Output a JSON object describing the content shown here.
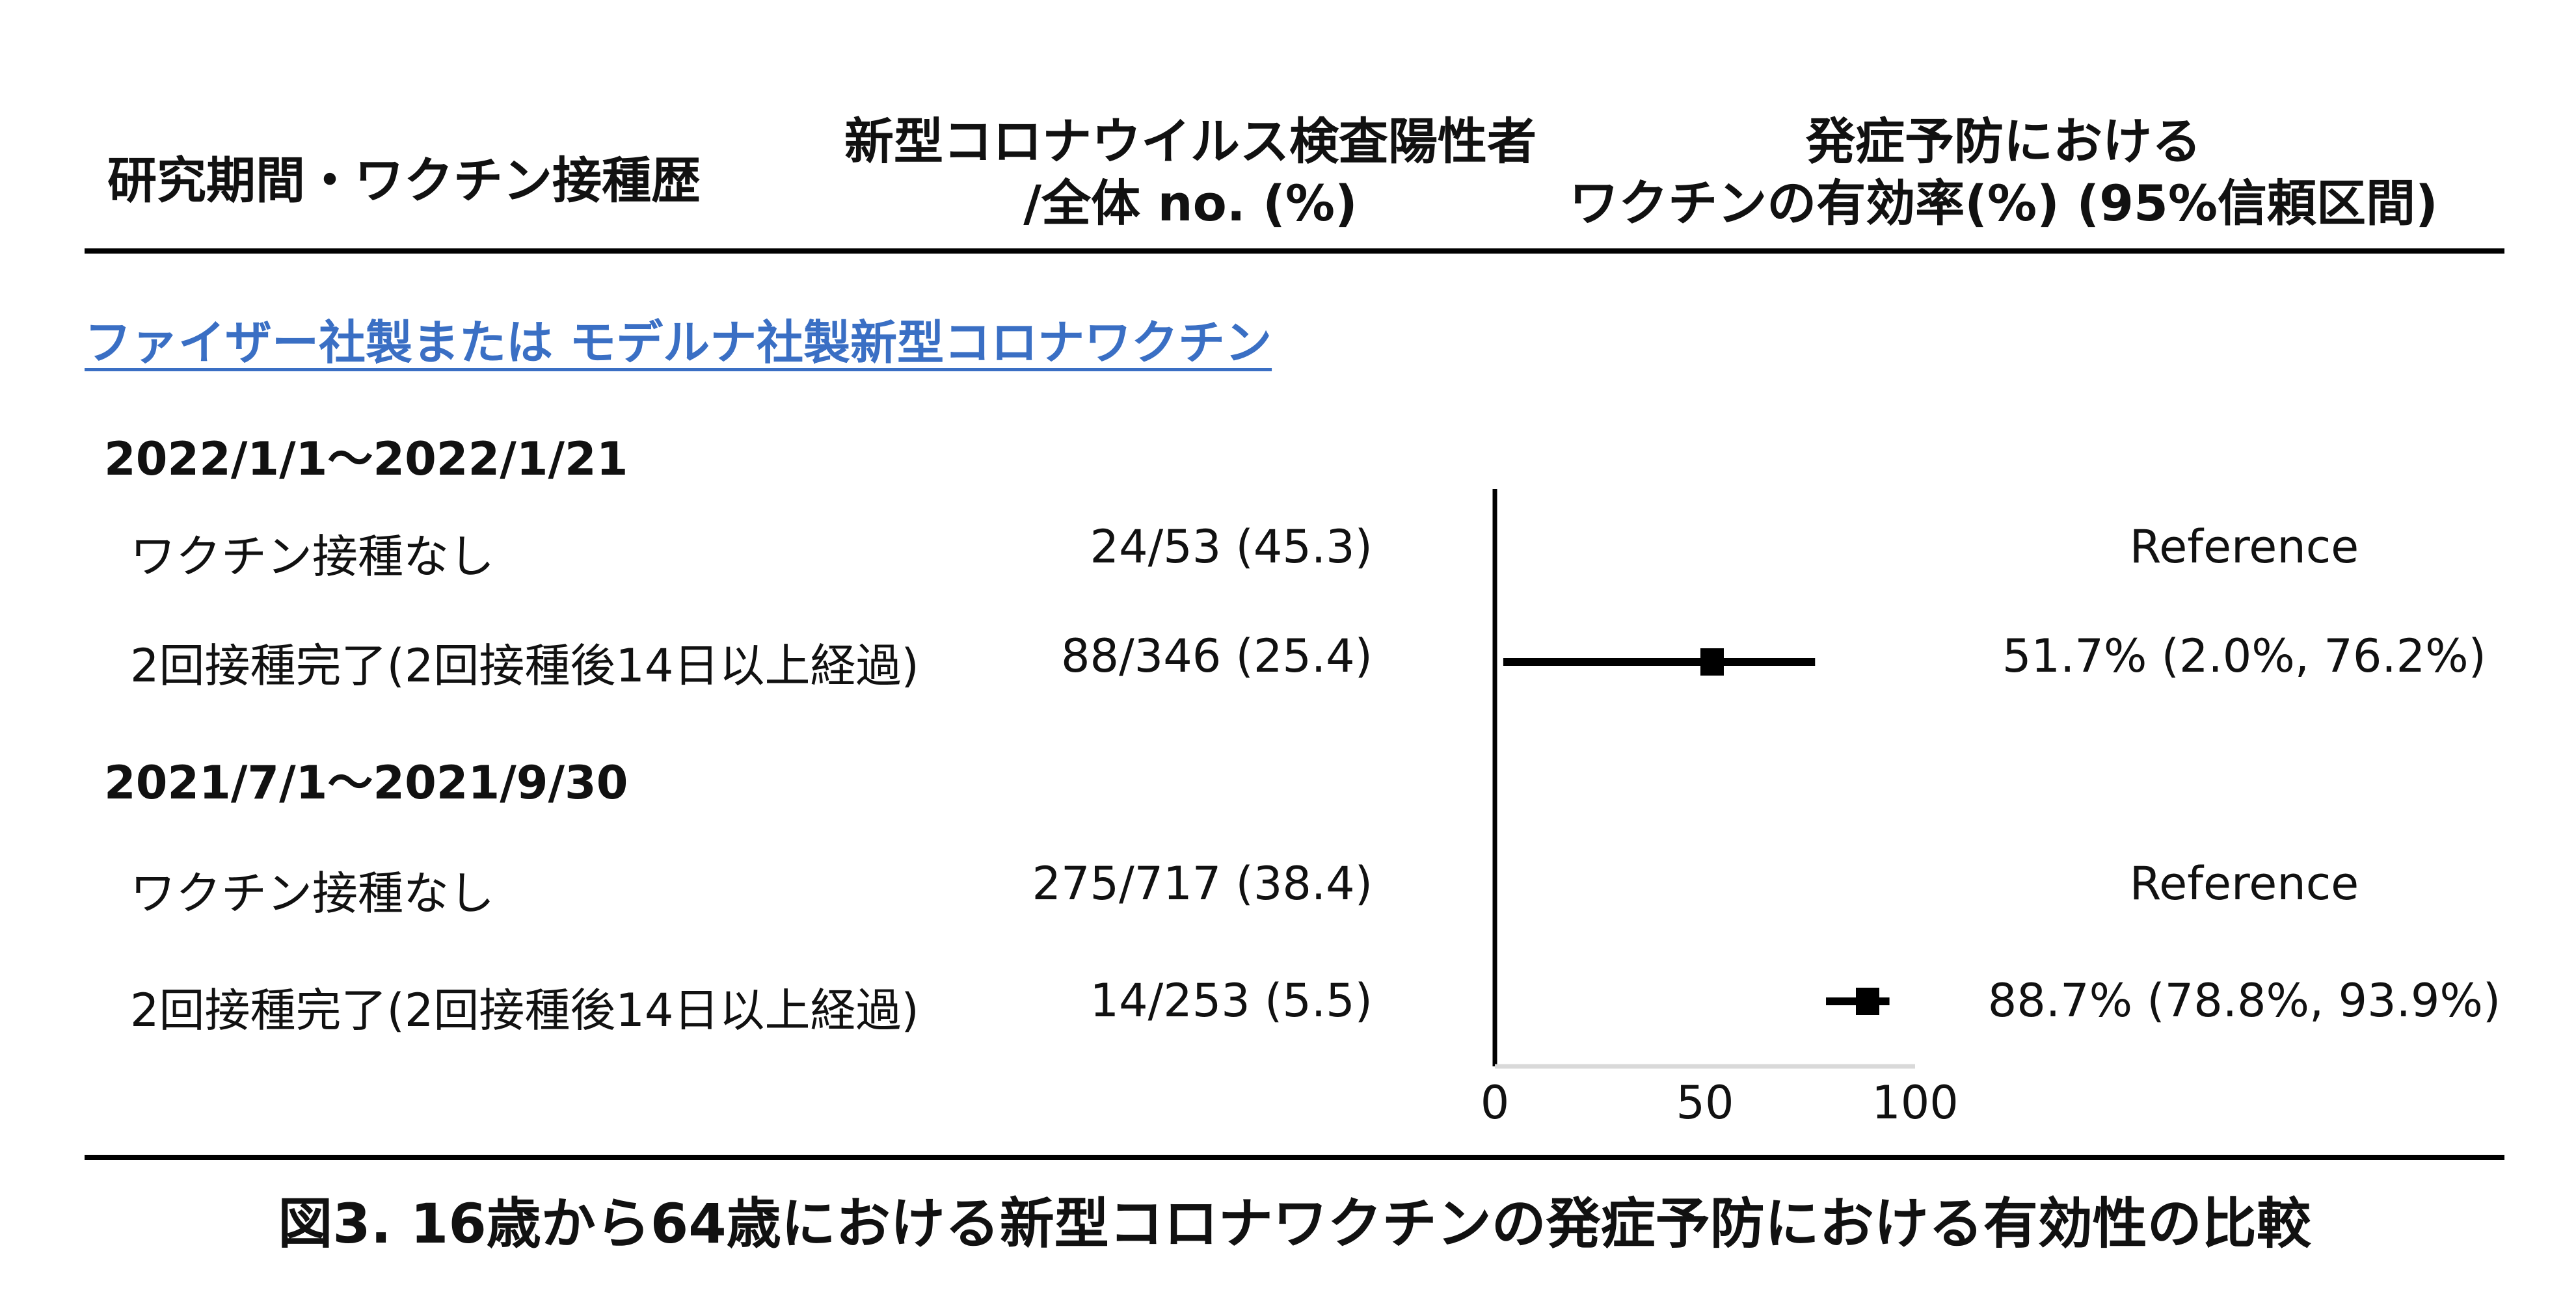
{
  "headers": {
    "col1": "研究期間・ワクチン接種歴",
    "col2_line1": "新型コロナウイルス検査陽性者",
    "col2_line2": "/全体 no. (%)",
    "col3_line1": "発症予防における",
    "col3_line2": "ワクチンの有効率(%) (95%信頼区間)"
  },
  "vaccine_label": "ファイザー社製または モデルナ社製新型コロナワクチン",
  "groups": [
    {
      "period": "2022/1/1～2022/1/21",
      "rows": [
        {
          "label": "ワクチン接種なし",
          "count": "24/53 (45.3)",
          "effect": "Reference"
        },
        {
          "label": "2回接種完了(2回接種後14日以上経過)",
          "count": "88/346 (25.4)",
          "effect": "51.7% (2.0%, 76.2%)"
        }
      ]
    },
    {
      "period": "2021/7/1～2021/9/30",
      "rows": [
        {
          "label": "ワクチン接種なし",
          "count": "275/717 (38.4)",
          "effect": "Reference"
        },
        {
          "label": "2回接種完了(2回接種後14日以上経過)",
          "count": "14/253 (5.5)",
          "effect": "88.7% (78.8%, 93.9%)"
        }
      ]
    }
  ],
  "caption": "図3. 16歳から64歳における新型コロナワクチンの発症予防における有効性の比較",
  "chart_data": {
    "type": "scatter",
    "subtype": "forest",
    "xlim": [
      0,
      100
    ],
    "ticks": [
      0,
      50,
      100
    ],
    "tick_labels": [
      "0",
      "50",
      "100"
    ],
    "points": [
      {
        "period": "2022/1/1～2022/1/21",
        "estimate": 51.7,
        "lower": 2.0,
        "upper": 76.2
      },
      {
        "period": "2021/7/1～2021/9/30",
        "estimate": 88.7,
        "lower": 78.8,
        "upper": 93.9
      }
    ],
    "colors": {
      "marker": "#000000",
      "axis": "#000000",
      "xaxis": "#d9d9d9"
    }
  }
}
